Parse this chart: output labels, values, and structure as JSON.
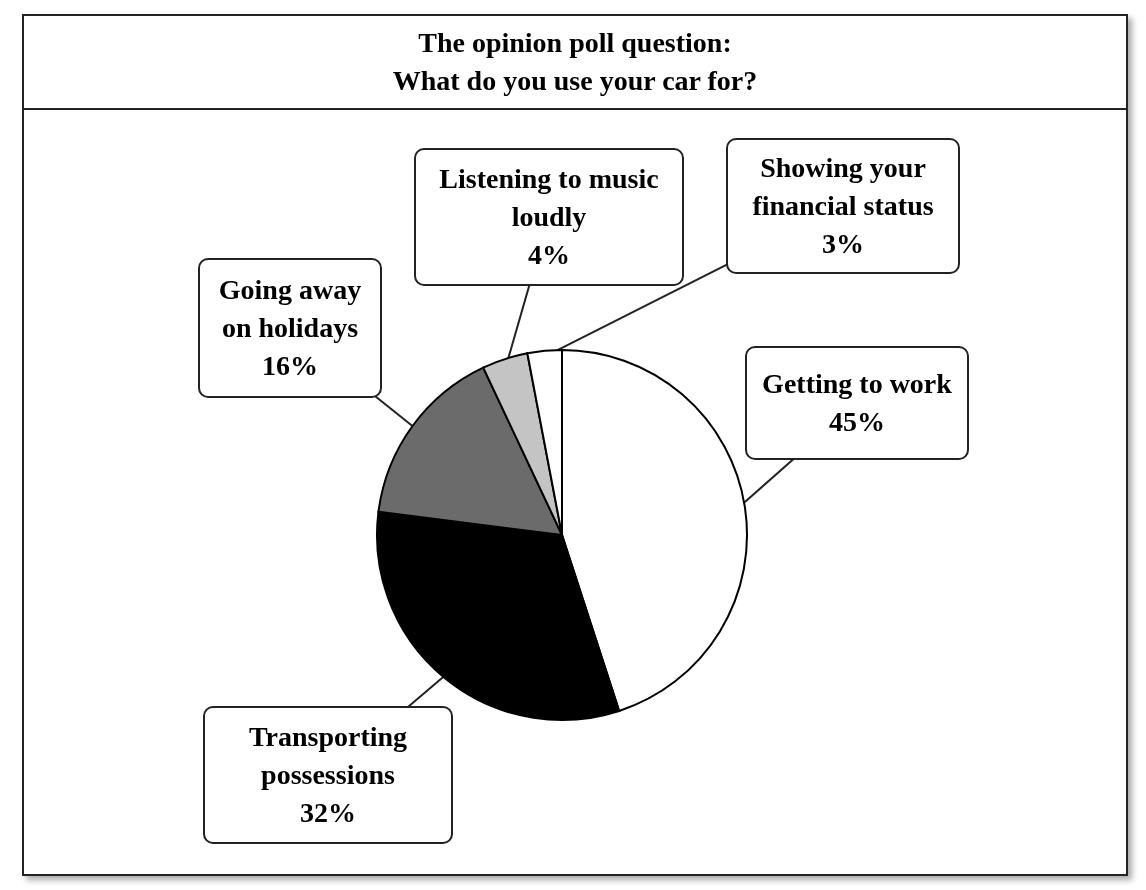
{
  "chart_data": {
    "type": "pie",
    "title": "The opinion poll question:\nWhat do you use your car for?",
    "categories": [
      "Getting to work",
      "Transporting possessions",
      "Going away on holidays",
      "Listening to music loudly",
      "Showing your financial status"
    ],
    "values": [
      45,
      32,
      16,
      4,
      3
    ],
    "colors": [
      "#ffffff",
      "#000000",
      "#6b6b6b",
      "#c4c4c4",
      "#ffffff"
    ],
    "value_labels": [
      "45%",
      "32%",
      "16%",
      "4%",
      "3%"
    ]
  }
}
